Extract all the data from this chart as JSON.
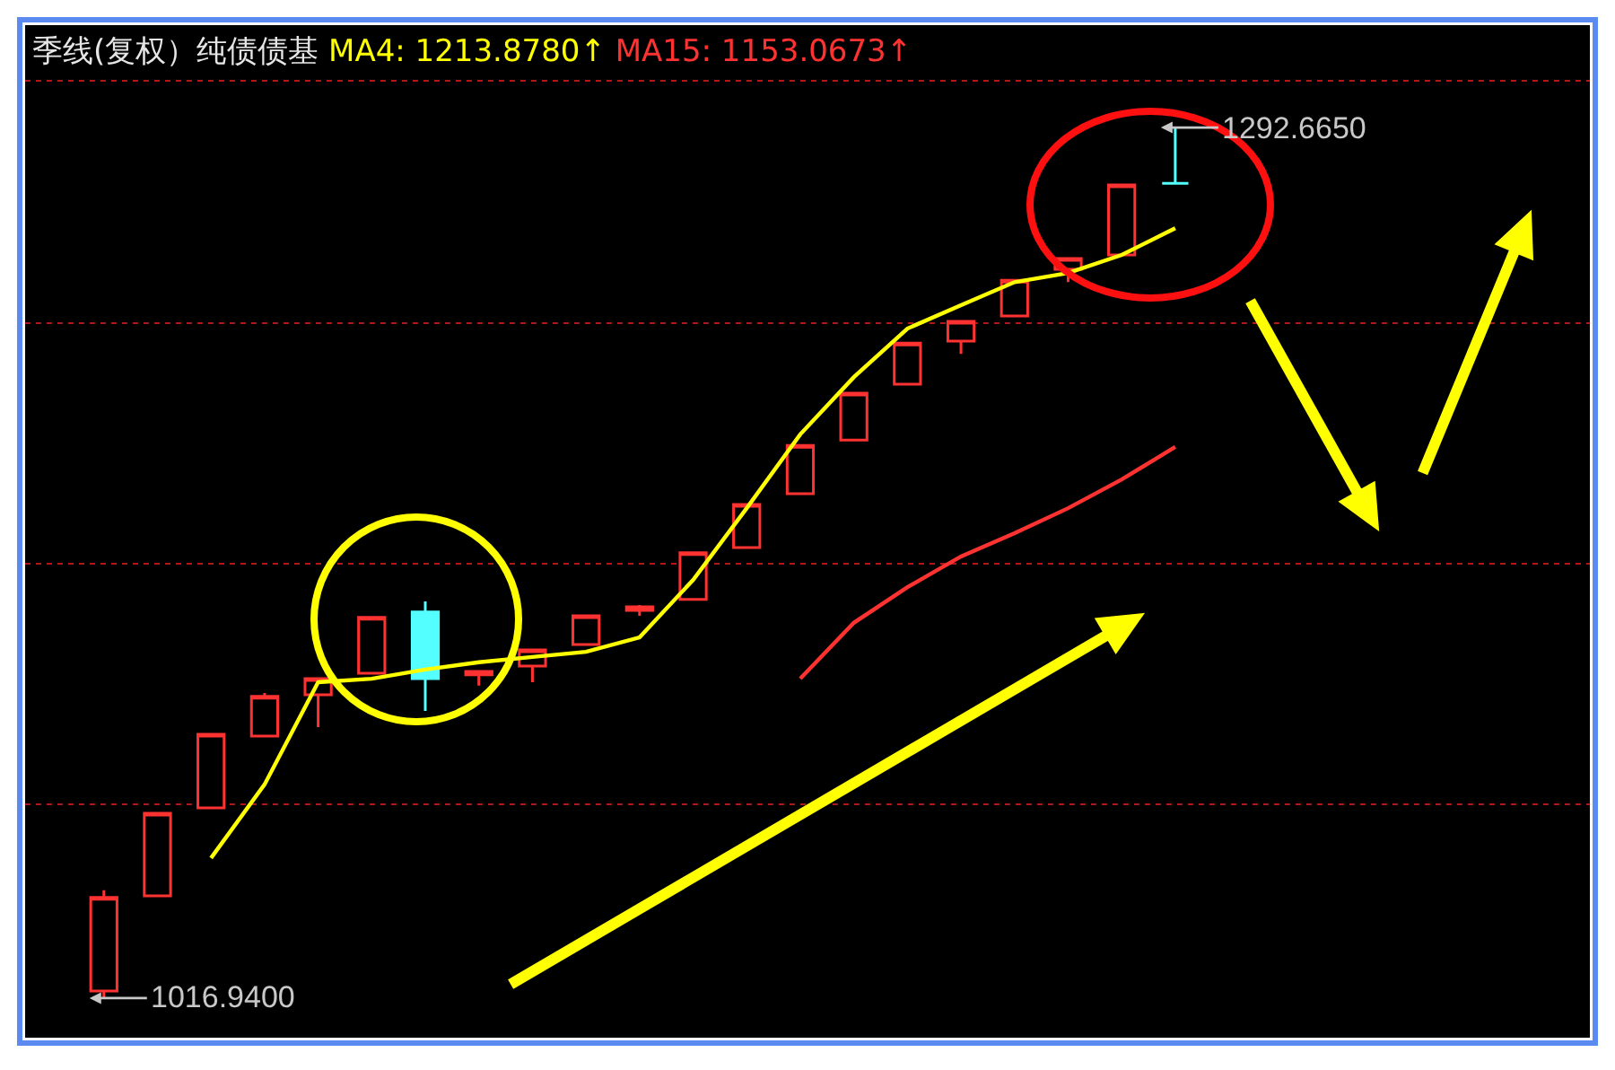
{
  "chart_data": {
    "type": "candlestick",
    "title": "季线(复权）纯债债基",
    "categories": [
      null,
      null,
      null,
      null,
      null,
      null,
      null,
      null,
      null,
      null,
      null,
      null,
      null,
      null,
      null,
      null,
      null,
      null,
      null,
      null,
      null
    ],
    "ohlc": [
      [
        1019.2,
        1051.1,
        1016.94,
        1048.8
      ],
      [
        1049.3,
        1075.5,
        1049.3,
        1075.5
      ],
      [
        1077.2,
        1100.5,
        1077.2,
        1100.5
      ],
      [
        1099.9,
        1113.6,
        1099.9,
        1112.5
      ],
      [
        1113.0,
        1118.1,
        1102.8,
        1118.1
      ],
      [
        1119.8,
        1137.5,
        1119.8,
        1137.5
      ],
      [
        1139.2,
        1142.6,
        1107.9,
        1118.1
      ],
      [
        1119.3,
        1120.4,
        1115.9,
        1120.4
      ],
      [
        1122.1,
        1127.2,
        1117.0,
        1127.2
      ],
      [
        1128.9,
        1138.0,
        1128.9,
        1138.0
      ],
      [
        1139.7,
        1141.4,
        1138.0,
        1140.9
      ],
      [
        1143.2,
        1158.0,
        1143.2,
        1158.0
      ],
      [
        1159.6,
        1173.3,
        1159.6,
        1173.3
      ],
      [
        1176.7,
        1192.0,
        1176.7,
        1192.0
      ],
      [
        1193.7,
        1208.5,
        1193.7,
        1208.5
      ],
      [
        1211.4,
        1224.4,
        1211.4,
        1224.4
      ],
      [
        1225.0,
        1231.3,
        1221.0,
        1231.3
      ],
      [
        1233.0,
        1244.3,
        1233.0,
        1244.3
      ],
      [
        1247.8,
        1251.2,
        1243.7,
        1251.2
      ],
      [
        1252.3,
        1274.5,
        1252.3,
        1274.5
      ],
      [
        1275.0,
        1292.665,
        1275.0,
        1275.0
      ]
    ],
    "colors": [
      "#ff3232",
      "#ff3232",
      "#ff3232",
      "#ff3232",
      "#ff3232",
      "#ff3232",
      "#54ffff",
      "#ff3232",
      "#ff3232",
      "#ff3232",
      "#ff3232",
      "#ff3232",
      "#ff3232",
      "#ff3232",
      "#ff3232",
      "#ff3232",
      "#ff3232",
      "#ff3232",
      "#ff3232",
      "#ff3232",
      "#54ffff"
    ],
    "series": [
      {
        "name": "MA4: 1213.8780↑",
        "type": "line",
        "color": "#ffff00",
        "values": [
          null,
          null,
          1061.3,
          1084.6,
          1117.0,
          1118.1,
          1121.0,
          1123.3,
          1125.0,
          1126.6,
          1131.2,
          1149.4,
          1172.1,
          1195.5,
          1213.6,
          1229.0,
          1236.4,
          1243.7,
          1246.6,
          1252.3,
          1260.8
        ]
      },
      {
        "name": "MA15: 1153.0673↑",
        "type": "line",
        "color": "#ff3232",
        "values": [
          null,
          null,
          null,
          null,
          null,
          null,
          null,
          null,
          null,
          null,
          null,
          null,
          null,
          1118.1,
          1135.8,
          1147.1,
          1156.8,
          1164.2,
          1172.1,
          1181.2,
          1191.5
        ]
      }
    ],
    "annotations": [
      "1016.9400",
      "1292.6650"
    ],
    "ylim": [
      1004.4,
      1325.1
    ],
    "yticks": [
      {
        "value": 1078.3,
        "label": null
      },
      {
        "value": 1154.5,
        "label": null
      },
      {
        "value": 1230.7,
        "label": null
      },
      {
        "value": 1307.4,
        "label": null
      }
    ],
    "grid": "y",
    "tick_labels": false,
    "legend": false
  }
}
